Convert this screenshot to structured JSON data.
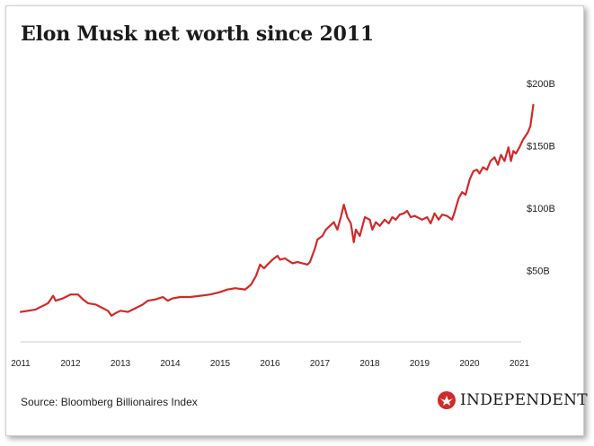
{
  "title": "Elon Musk net worth since 2011",
  "source": "Source: Bloomberg Billionaires Index",
  "brand": "INDEPENDENT",
  "colors": {
    "line": "#d12a2a",
    "axis": "#cccccc",
    "text": "#222222"
  },
  "chart_data": {
    "type": "line",
    "title": "Elon Musk net worth since 2011",
    "xlabel": "",
    "ylabel": "",
    "x_ticks": [
      "2011",
      "2012",
      "2013",
      "2014",
      "2015",
      "2016",
      "2017",
      "2018",
      "2019",
      "2020",
      "2021"
    ],
    "y_ticks": [
      {
        "value": 50,
        "label": "$50B"
      },
      {
        "value": 100,
        "label": "$100B"
      },
      {
        "value": 150,
        "label": "$150B"
      },
      {
        "value": 200,
        "label": "$200B"
      }
    ],
    "xlim": [
      2011,
      2021
    ],
    "ylim": [
      0,
      200
    ],
    "grid": false,
    "series": [
      {
        "name": "",
        "points": [
          [
            2011.0,
            24
          ],
          [
            2011.15,
            25
          ],
          [
            2011.3,
            26
          ],
          [
            2011.45,
            29
          ],
          [
            2011.55,
            31
          ],
          [
            2011.65,
            37
          ],
          [
            2011.7,
            33
          ],
          [
            2011.85,
            35
          ],
          [
            2012.0,
            38
          ],
          [
            2012.15,
            38
          ],
          [
            2012.25,
            34
          ],
          [
            2012.35,
            31
          ],
          [
            2012.5,
            30
          ],
          [
            2012.65,
            27
          ],
          [
            2012.75,
            25
          ],
          [
            2012.82,
            21
          ],
          [
            2012.9,
            23
          ],
          [
            2013.0,
            25
          ],
          [
            2013.15,
            24
          ],
          [
            2013.3,
            27
          ],
          [
            2013.45,
            30
          ],
          [
            2013.55,
            33
          ],
          [
            2013.7,
            34
          ],
          [
            2013.85,
            36
          ],
          [
            2013.95,
            33
          ],
          [
            2014.05,
            35
          ],
          [
            2014.2,
            36
          ],
          [
            2014.4,
            36
          ],
          [
            2014.6,
            37
          ],
          [
            2014.8,
            38
          ],
          [
            2015.0,
            40
          ],
          [
            2015.15,
            42
          ],
          [
            2015.3,
            43
          ],
          [
            2015.5,
            42
          ],
          [
            2015.62,
            46
          ],
          [
            2015.72,
            53
          ],
          [
            2015.8,
            62
          ],
          [
            2015.88,
            59
          ],
          [
            2015.95,
            62
          ],
          [
            2016.05,
            66
          ],
          [
            2016.15,
            69
          ],
          [
            2016.2,
            66
          ],
          [
            2016.3,
            67
          ],
          [
            2016.45,
            63
          ],
          [
            2016.55,
            64
          ],
          [
            2016.65,
            63
          ],
          [
            2016.75,
            62
          ],
          [
            2016.8,
            64
          ],
          [
            2016.9,
            75
          ],
          [
            2016.95,
            82
          ],
          [
            2017.05,
            85
          ],
          [
            2017.12,
            90
          ],
          [
            2017.2,
            93
          ],
          [
            2017.28,
            96
          ],
          [
            2017.35,
            90
          ],
          [
            2017.42,
            100
          ],
          [
            2017.48,
            110
          ],
          [
            2017.55,
            100
          ],
          [
            2017.62,
            95
          ],
          [
            2017.68,
            80
          ],
          [
            2017.72,
            90
          ],
          [
            2017.8,
            85
          ],
          [
            2017.9,
            100
          ],
          [
            2018.0,
            98
          ],
          [
            2018.05,
            90
          ],
          [
            2018.12,
            96
          ],
          [
            2018.2,
            93
          ],
          [
            2018.3,
            98
          ],
          [
            2018.38,
            95
          ],
          [
            2018.45,
            100
          ],
          [
            2018.52,
            98
          ],
          [
            2018.6,
            102
          ],
          [
            2018.68,
            103
          ],
          [
            2018.75,
            105
          ],
          [
            2018.82,
            100
          ],
          [
            2018.9,
            101
          ],
          [
            2018.95,
            100
          ],
          [
            2019.05,
            98
          ],
          [
            2019.15,
            100
          ],
          [
            2019.22,
            95
          ],
          [
            2019.3,
            103
          ],
          [
            2019.38,
            98
          ],
          [
            2019.45,
            102
          ],
          [
            2019.55,
            101
          ],
          [
            2019.65,
            98
          ],
          [
            2019.7,
            104
          ],
          [
            2019.78,
            115
          ],
          [
            2019.85,
            120
          ],
          [
            2019.92,
            118
          ],
          [
            2020.0,
            130
          ],
          [
            2020.08,
            137
          ],
          [
            2020.15,
            138
          ],
          [
            2020.2,
            135
          ],
          [
            2020.27,
            140
          ],
          [
            2020.35,
            138
          ],
          [
            2020.42,
            145
          ],
          [
            2020.5,
            148
          ],
          [
            2020.57,
            142
          ],
          [
            2020.63,
            150
          ],
          [
            2020.7,
            145
          ],
          [
            2020.78,
            156
          ],
          [
            2020.83,
            145
          ],
          [
            2020.88,
            153
          ],
          [
            2020.93,
            151
          ],
          [
            2021.0,
            156
          ],
          [
            2021.07,
            162
          ],
          [
            2021.12,
            165
          ],
          [
            2021.17,
            168
          ],
          [
            2021.22,
            173
          ],
          [
            2021.28,
            190
          ]
        ]
      }
    ]
  }
}
